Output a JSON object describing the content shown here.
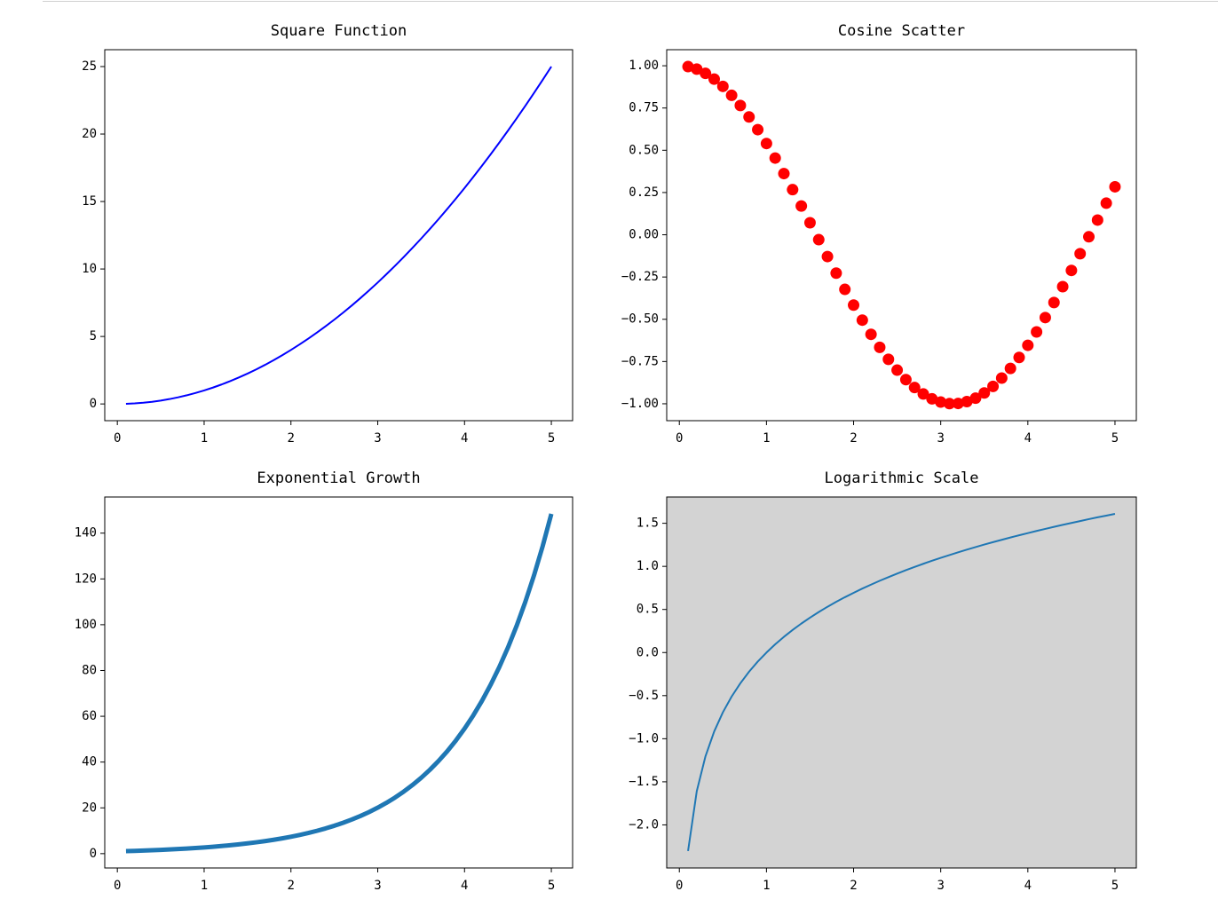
{
  "chart_data": [
    {
      "type": "line",
      "title": "Square Function",
      "color": "#0000ff",
      "x": [
        0.1,
        0.2,
        0.3,
        0.4,
        0.5,
        0.6,
        0.7,
        0.8,
        0.9,
        1.0,
        1.1,
        1.2,
        1.3,
        1.4,
        1.5,
        1.6,
        1.7,
        1.8,
        1.9,
        2.0,
        2.1,
        2.2,
        2.3,
        2.4,
        2.5,
        2.6,
        2.7,
        2.8,
        2.9,
        3.0,
        3.1,
        3.2,
        3.3,
        3.4,
        3.5,
        3.6,
        3.7,
        3.8,
        3.9,
        4.0,
        4.1,
        4.2,
        4.3,
        4.4,
        4.5,
        4.6,
        4.7,
        4.8,
        4.9,
        5.0
      ],
      "values": [
        0.01,
        0.04,
        0.09,
        0.16,
        0.25,
        0.36,
        0.49,
        0.64,
        0.81,
        1,
        1.21,
        1.44,
        1.69,
        1.96,
        2.25,
        2.56,
        2.89,
        3.24,
        3.61,
        4,
        4.41,
        4.84,
        5.29,
        5.76,
        6.25,
        6.76,
        7.29,
        7.84,
        8.41,
        9,
        9.61,
        10.24,
        10.89,
        11.56,
        12.25,
        12.96,
        13.69,
        14.44,
        15.21,
        16,
        16.81,
        17.64,
        18.49,
        19.36,
        20.25,
        21.16,
        22.09,
        23.04,
        24.01,
        25
      ],
      "xlim": [
        -0.145,
        5.245
      ],
      "xticks": [
        0,
        1,
        2,
        3,
        4,
        5
      ],
      "ylim": [
        -1.24,
        26.25
      ],
      "yticks": [
        0,
        5,
        10,
        15,
        20,
        25
      ]
    },
    {
      "type": "scatter",
      "title": "Cosine Scatter",
      "color": "#ff0000",
      "x": [
        0.1,
        0.2,
        0.3,
        0.4,
        0.5,
        0.6,
        0.7,
        0.8,
        0.9,
        1.0,
        1.1,
        1.2,
        1.3,
        1.4,
        1.5,
        1.6,
        1.7,
        1.8,
        1.9,
        2.0,
        2.1,
        2.2,
        2.3,
        2.4,
        2.5,
        2.6,
        2.7,
        2.8,
        2.9,
        3.0,
        3.1,
        3.2,
        3.3,
        3.4,
        3.5,
        3.6,
        3.7,
        3.8,
        3.9,
        4.0,
        4.1,
        4.2,
        4.3,
        4.4,
        4.5,
        4.6,
        4.7,
        4.8,
        4.9,
        5.0
      ],
      "values": [
        0.995,
        0.98,
        0.955,
        0.921,
        0.878,
        0.825,
        0.765,
        0.697,
        0.622,
        0.54,
        0.454,
        0.362,
        0.267,
        0.17,
        0.071,
        -0.029,
        -0.129,
        -0.227,
        -0.323,
        -0.416,
        -0.505,
        -0.589,
        -0.666,
        -0.737,
        -0.801,
        -0.857,
        -0.904,
        -0.942,
        -0.971,
        -0.99,
        -0.999,
        -0.998,
        -0.987,
        -0.967,
        -0.936,
        -0.897,
        -0.848,
        -0.791,
        -0.726,
        -0.654,
        -0.575,
        -0.49,
        -0.401,
        -0.307,
        -0.211,
        -0.112,
        -0.012,
        0.087,
        0.187,
        0.284
      ],
      "xlim": [
        -0.145,
        5.245
      ],
      "xticks": [
        0,
        1,
        2,
        3,
        4,
        5
      ],
      "ylim": [
        -1.1,
        1.095
      ],
      "yticks": [
        {
          "value": -1,
          "label": "−1.00"
        },
        {
          "value": -0.75,
          "label": "−0.75"
        },
        {
          "value": -0.5,
          "label": "−0.50"
        },
        {
          "value": -0.25,
          "label": "−0.25"
        },
        {
          "value": 0,
          "label": "0.00"
        },
        {
          "value": 0.25,
          "label": "0.25"
        },
        {
          "value": 0.5,
          "label": "0.50"
        },
        {
          "value": 0.75,
          "label": "0.75"
        },
        {
          "value": 1,
          "label": "1.00"
        }
      ]
    },
    {
      "type": "line",
      "title": "Exponential Growth",
      "color": "#1f77b4",
      "x": [
        0.1,
        0.2,
        0.3,
        0.4,
        0.5,
        0.6,
        0.7,
        0.8,
        0.9,
        1.0,
        1.1,
        1.2,
        1.3,
        1.4,
        1.5,
        1.6,
        1.7,
        1.8,
        1.9,
        2.0,
        2.1,
        2.2,
        2.3,
        2.4,
        2.5,
        2.6,
        2.7,
        2.8,
        2.9,
        3.0,
        3.1,
        3.2,
        3.3,
        3.4,
        3.5,
        3.6,
        3.7,
        3.8,
        3.9,
        4.0,
        4.1,
        4.2,
        4.3,
        4.4,
        4.5,
        4.6,
        4.7,
        4.8,
        4.9,
        5.0
      ],
      "values": [
        1.105,
        1.221,
        1.35,
        1.492,
        1.649,
        1.822,
        2.014,
        2.226,
        2.46,
        2.718,
        3.004,
        3.32,
        3.669,
        4.055,
        4.482,
        4.953,
        5.474,
        6.05,
        6.686,
        7.389,
        8.166,
        9.025,
        9.974,
        11.023,
        12.182,
        13.464,
        14.88,
        16.445,
        18.174,
        20.086,
        22.198,
        24.533,
        27.113,
        29.964,
        33.115,
        36.598,
        40.447,
        44.701,
        49.402,
        54.598,
        60.34,
        66.686,
        73.7,
        81.451,
        90.017,
        99.484,
        109.947,
        121.51,
        134.29,
        148.413
      ],
      "xlim": [
        -0.145,
        5.245
      ],
      "xticks": [
        0,
        1,
        2,
        3,
        4,
        5
      ],
      "ylim": [
        -6.26,
        155.78
      ],
      "yticks": [
        0,
        20,
        40,
        60,
        80,
        100,
        120,
        140
      ]
    },
    {
      "type": "line",
      "title": "Logarithmic Scale",
      "color": "#1f77b4",
      "facecolor": "#d3d3d3",
      "x": [
        0.1,
        0.2,
        0.3,
        0.4,
        0.5,
        0.6,
        0.7,
        0.8,
        0.9,
        1.0,
        1.1,
        1.2,
        1.3,
        1.4,
        1.5,
        1.6,
        1.7,
        1.8,
        1.9,
        2.0,
        2.1,
        2.2,
        2.3,
        2.4,
        2.5,
        2.6,
        2.7,
        2.8,
        2.9,
        3.0,
        3.1,
        3.2,
        3.3,
        3.4,
        3.5,
        3.6,
        3.7,
        3.8,
        3.9,
        4.0,
        4.1,
        4.2,
        4.3,
        4.4,
        4.5,
        4.6,
        4.7,
        4.8,
        4.9,
        5.0
      ],
      "values": [
        -2.303,
        -1.609,
        -1.204,
        -0.916,
        -0.693,
        -0.511,
        -0.357,
        -0.223,
        -0.105,
        0,
        0.095,
        0.182,
        0.262,
        0.336,
        0.405,
        0.47,
        0.531,
        0.588,
        0.642,
        0.693,
        0.742,
        0.788,
        0.833,
        0.875,
        0.916,
        0.956,
        0.993,
        1.03,
        1.065,
        1.099,
        1.131,
        1.163,
        1.194,
        1.224,
        1.253,
        1.281,
        1.308,
        1.335,
        1.361,
        1.386,
        1.411,
        1.435,
        1.459,
        1.482,
        1.504,
        1.526,
        1.548,
        1.569,
        1.589,
        1.609
      ],
      "xlim": [
        -0.145,
        5.245
      ],
      "xticks": [
        0,
        1,
        2,
        3,
        4,
        5
      ],
      "ylim": [
        -2.5,
        1.805
      ],
      "yticks": [
        {
          "value": -2,
          "label": "−2.0"
        },
        {
          "value": -1.5,
          "label": "−1.5"
        },
        {
          "value": -1,
          "label": "−1.0"
        },
        {
          "value": -0.5,
          "label": "−0.5"
        },
        {
          "value": 0,
          "label": "0.0"
        },
        0.5,
        {
          "value": 1,
          "label": "1.0"
        },
        1.5
      ]
    }
  ]
}
